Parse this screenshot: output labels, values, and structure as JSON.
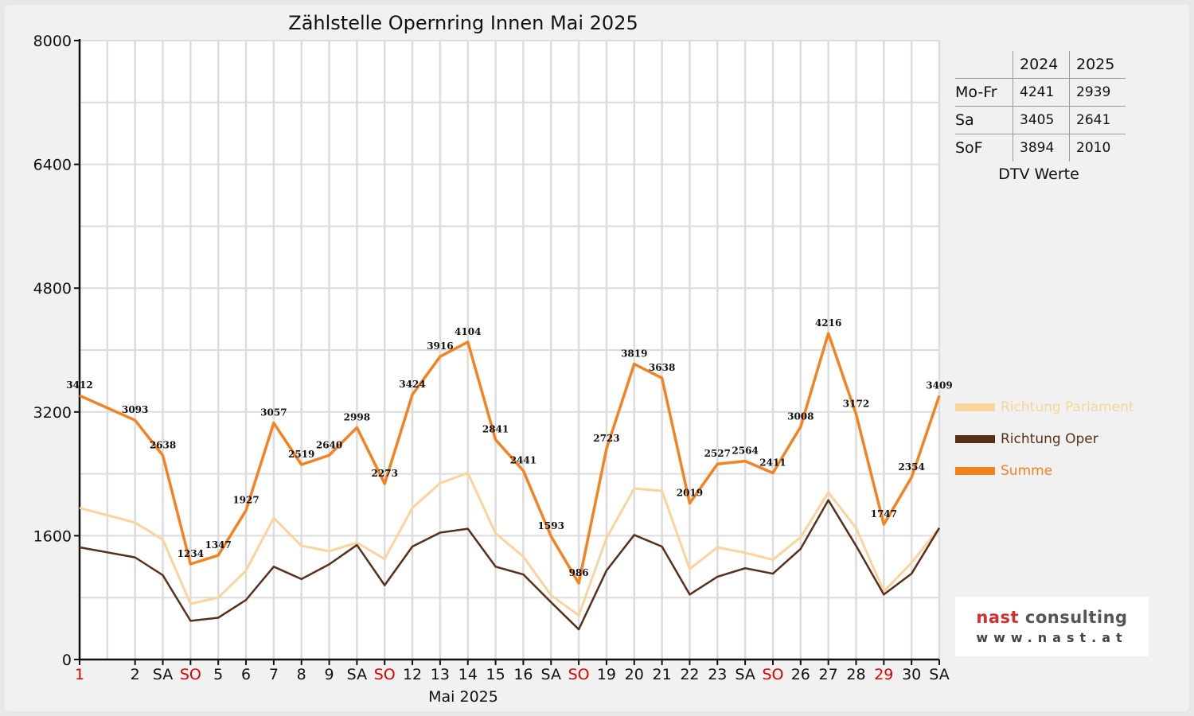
{
  "chart_data": {
    "type": "line",
    "title": "Zählstelle Opernring Innen Mai 2025",
    "xlabel": "Mai 2025",
    "ylabel": "",
    "ylim": [
      0,
      8000
    ],
    "yticks": [
      "0",
      "1600",
      "3200",
      "4800",
      "6400",
      "8000"
    ],
    "grid": true,
    "legend_position": "right",
    "categories": [
      "1",
      "2",
      "SA",
      "SO",
      "5",
      "6",
      "7",
      "8",
      "9",
      "SA",
      "SO",
      "12",
      "13",
      "14",
      "15",
      "16",
      "SA",
      "SO",
      "19",
      "20",
      "21",
      "22",
      "23",
      "SA",
      "SO",
      "26",
      "27",
      "28",
      "29",
      "30",
      "SA"
    ],
    "red_categories": [
      0,
      3,
      10,
      17,
      24,
      28
    ],
    "series": [
      {
        "name": "Richtung Parlament",
        "color": "#fbd39c",
        "values": [
          1960,
          1770,
          1550,
          720,
          800,
          1150,
          1830,
          1470,
          1400,
          1510,
          1300,
          1960,
          2280,
          2410,
          1630,
          1330,
          830,
          570,
          1570,
          2210,
          2180,
          1170,
          1450,
          1380,
          1290,
          1580,
          2160,
          1700,
          880,
          1250,
          1700
        ]
      },
      {
        "name": "Richtung Oper",
        "color": "#5a2f1a",
        "values": [
          1450,
          1320,
          1090,
          500,
          540,
          770,
          1200,
          1040,
          1230,
          1480,
          960,
          1460,
          1640,
          1690,
          1200,
          1100,
          740,
          390,
          1150,
          1610,
          1460,
          840,
          1070,
          1180,
          1110,
          1430,
          2060,
          1470,
          840,
          1110,
          1700
        ]
      },
      {
        "name": "Summe",
        "color": "#f58220",
        "values": [
          3412,
          3093,
          2638,
          1234,
          1347,
          1927,
          3057,
          2519,
          2640,
          2998,
          2273,
          3424,
          3916,
          4104,
          2841,
          2441,
          1593,
          986,
          2723,
          3819,
          3638,
          2019,
          2527,
          2564,
          2411,
          3008,
          4216,
          3172,
          1747,
          2354,
          3409
        ]
      }
    ]
  },
  "dtv_table": {
    "headers": [
      "",
      "2024",
      "2025"
    ],
    "rows": [
      {
        "label": "Mo-Fr",
        "v2024": "4241",
        "v2025": "2939"
      },
      {
        "label": "Sa",
        "v2024": "3405",
        "v2025": "2641"
      },
      {
        "label": "SoF",
        "v2024": "3894",
        "v2025": "2010"
      }
    ],
    "caption": "DTV Werte"
  },
  "logo": {
    "word1": "nast",
    "word2": "consulting",
    "url": "www.nast.at"
  }
}
